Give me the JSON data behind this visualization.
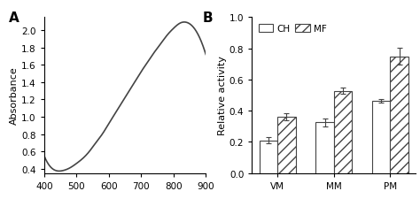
{
  "panel_A": {
    "label": "A",
    "ylabel": "Absorbance",
    "xlim": [
      400,
      900
    ],
    "ylim": [
      0.35,
      2.15
    ],
    "yticks": [
      0.4,
      0.6,
      0.8,
      1.0,
      1.2,
      1.4,
      1.6,
      1.8,
      2.0
    ],
    "xticks": [
      400,
      500,
      600,
      700,
      800,
      900
    ],
    "curve_color": "#444444",
    "curve_points_x": [
      400,
      420,
      440,
      460,
      480,
      500,
      520,
      540,
      560,
      580,
      600,
      620,
      640,
      660,
      680,
      700,
      720,
      740,
      760,
      780,
      800,
      820,
      840,
      860,
      880,
      900
    ],
    "curve_points_y": [
      0.55,
      0.42,
      0.375,
      0.38,
      0.41,
      0.46,
      0.52,
      0.6,
      0.7,
      0.8,
      0.92,
      1.04,
      1.16,
      1.28,
      1.4,
      1.52,
      1.63,
      1.74,
      1.84,
      1.94,
      2.02,
      2.08,
      2.09,
      2.04,
      1.92,
      1.72
    ]
  },
  "panel_B": {
    "label": "B",
    "ylabel": "Relative activity",
    "ylim": [
      0.0,
      1.0
    ],
    "yticks": [
      0.0,
      0.2,
      0.4,
      0.6,
      0.8,
      1.0
    ],
    "categories": [
      "VM",
      "MM",
      "PM"
    ],
    "CH_values": [
      0.21,
      0.325,
      0.463
    ],
    "CH_errors": [
      0.018,
      0.025,
      0.013
    ],
    "MF_values": [
      0.362,
      0.528,
      0.748
    ],
    "MF_errors": [
      0.022,
      0.022,
      0.055
    ],
    "bar_width": 0.32,
    "CH_color": "white",
    "MF_color": "white",
    "edge_color": "#444444",
    "legend_CH": "CH",
    "legend_MF": "MF"
  },
  "figure_bg": "white"
}
